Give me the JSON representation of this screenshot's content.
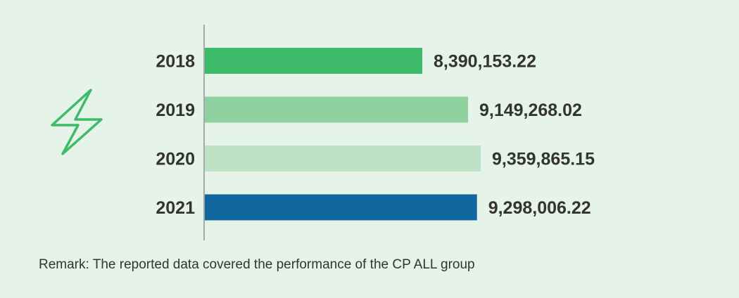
{
  "chart_data": {
    "type": "bar",
    "orientation": "horizontal",
    "categories": [
      "2018",
      "2019",
      "2020",
      "2021"
    ],
    "values": [
      8390153.22,
      9149268.02,
      9359865.15,
      9298006.22
    ],
    "value_labels": [
      "8,390,153.22",
      "9,149,268.02",
      "9,359,865.15",
      "9,298,006.22"
    ],
    "colors": [
      "#3dba6a",
      "#8fd19e",
      "#bde2c6",
      "#11679f"
    ],
    "grid": false,
    "legend": "none"
  },
  "icon": {
    "name": "lightning-bolt-icon",
    "color": "#3dba6a"
  },
  "background_color": "#e6f3e8",
  "remark": "Remark: The reported data covered the performance of the CP ALL group"
}
